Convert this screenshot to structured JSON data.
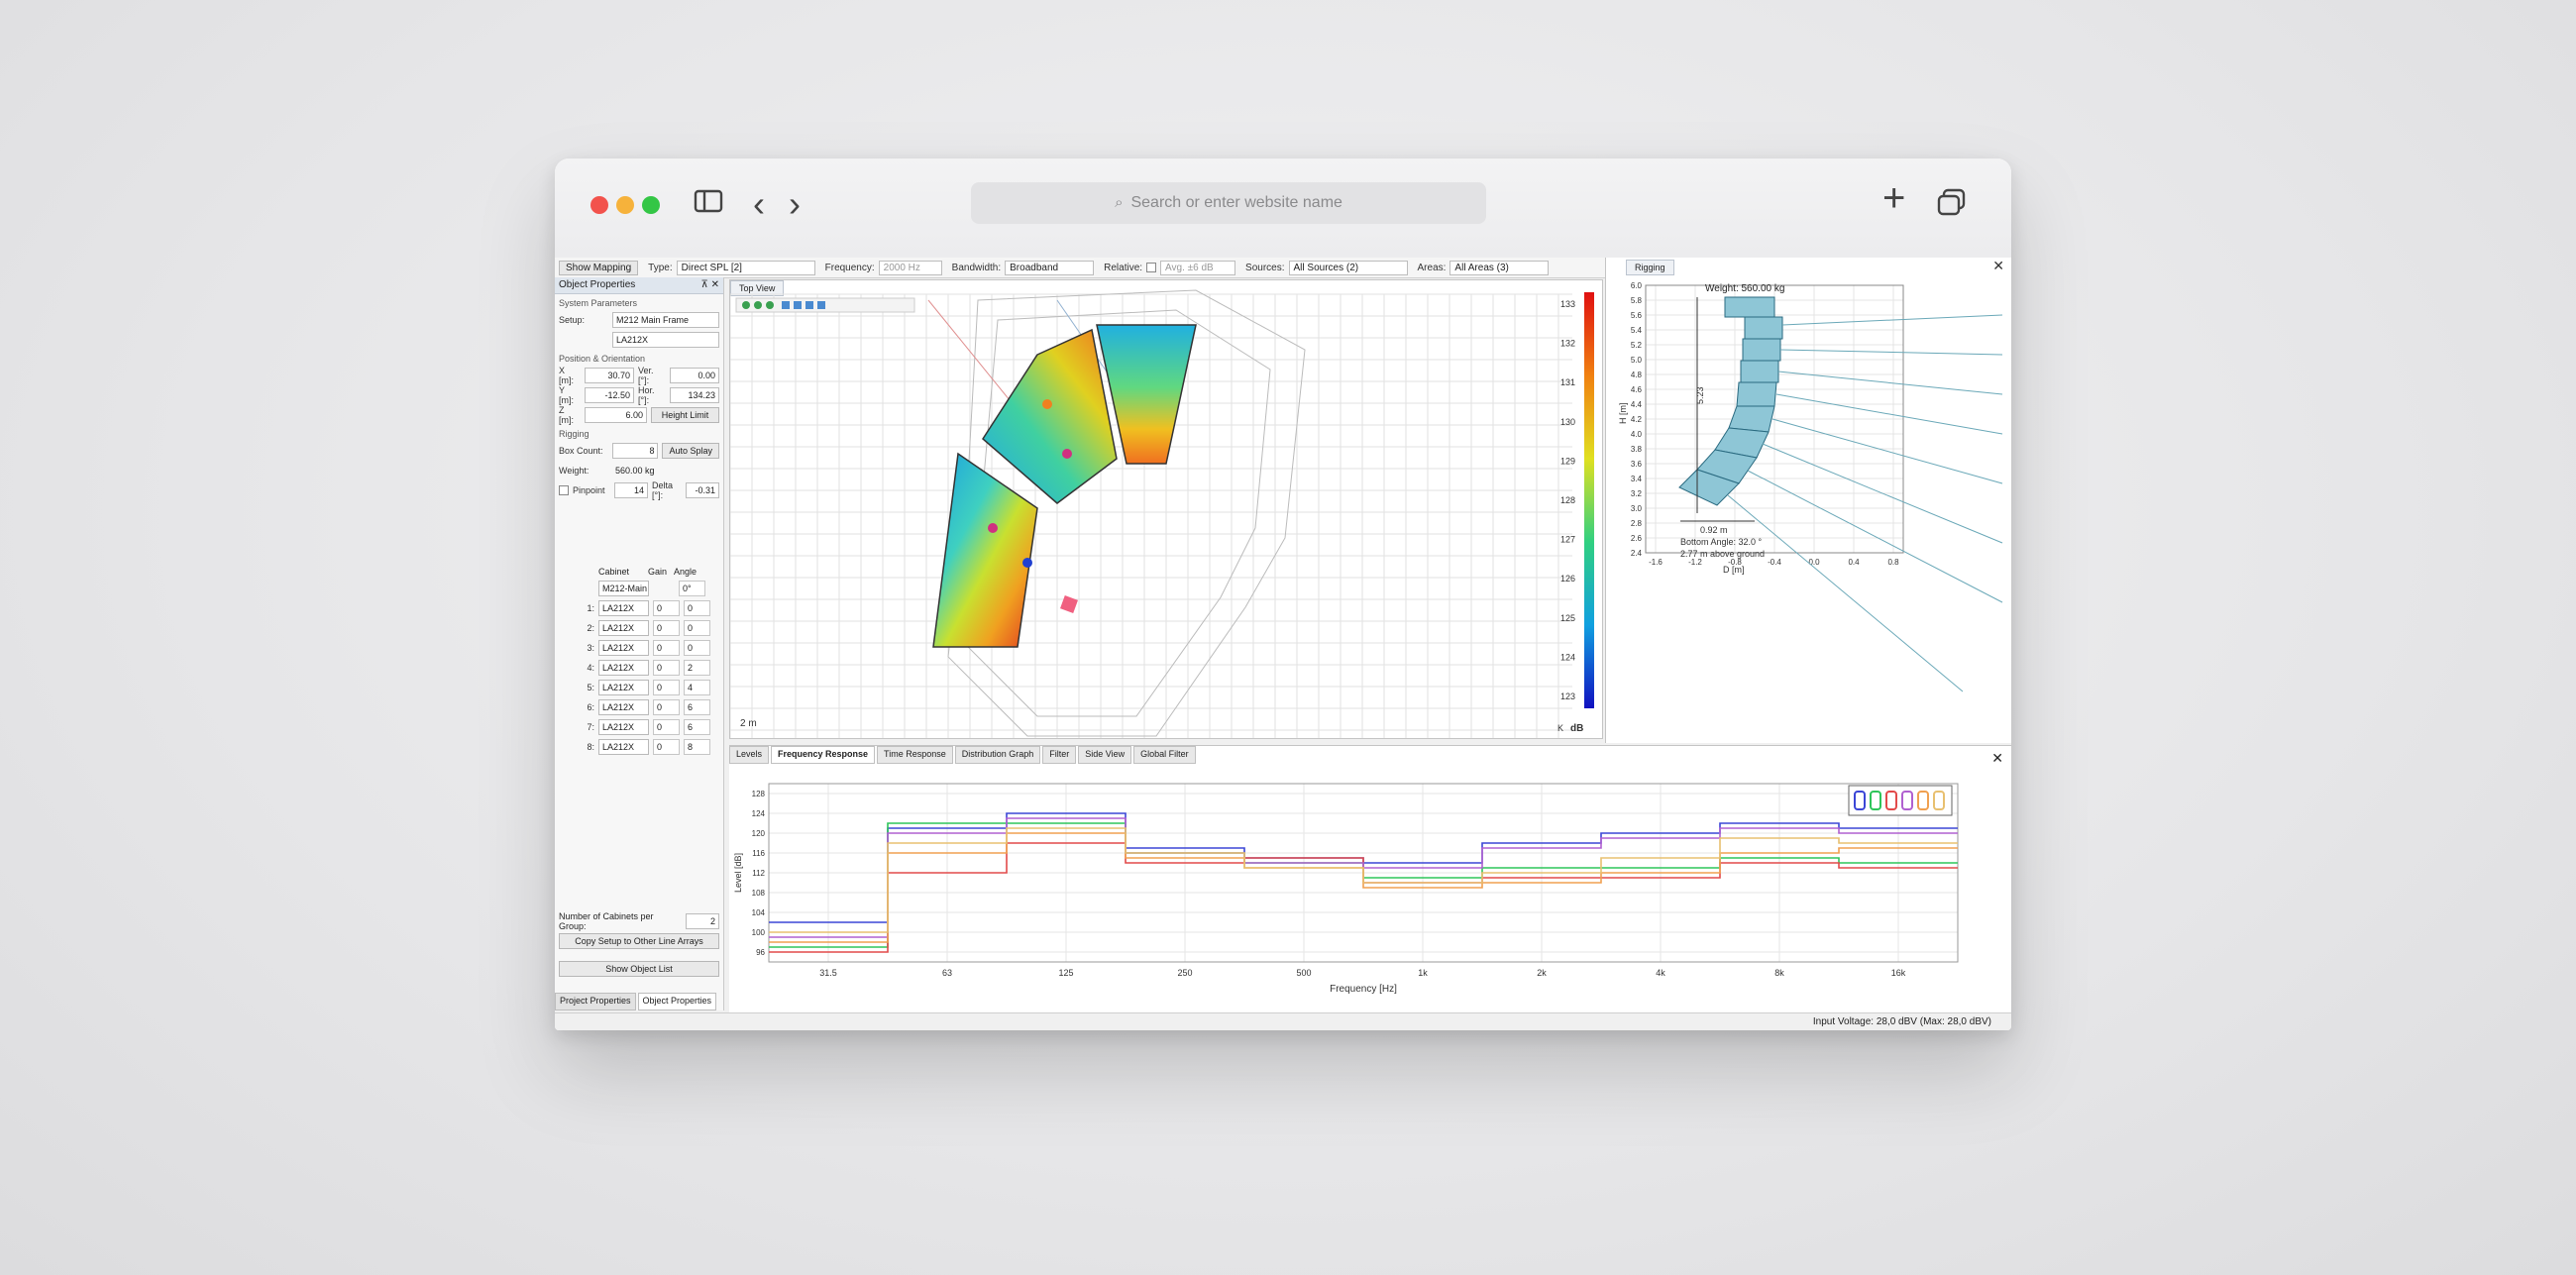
{
  "browser": {
    "url_placeholder": "Search or enter website name",
    "plus_label": "+",
    "back_label": "‹",
    "forward_label": "›"
  },
  "toolbar": {
    "show_mapping": "Show Mapping",
    "type_label": "Type:",
    "type_value": "Direct SPL [2]",
    "frequency_label": "Frequency:",
    "frequency_value": "2000 Hz",
    "bandwidth_label": "Bandwidth:",
    "bandwidth_value": "Broadband",
    "relative_label": "Relative:",
    "relative_value": "Avg. ±6 dB",
    "sources_label": "Sources:",
    "sources_value": "All Sources (2)",
    "areas_label": "Areas:",
    "areas_value": "All Areas (3)"
  },
  "left_panel": {
    "title": "Object Properties",
    "pins": "⊼ ✕",
    "system_params": "System Parameters",
    "setup_label": "Setup:",
    "setup_value": "M212 Main Frame",
    "model_value": "LA212X",
    "pos_section": "Position & Orientation",
    "x_label": "X [m]:",
    "x_value": "30.70",
    "ver_label": "Ver. [°]:",
    "ver_value": "0.00",
    "y_label": "Y [m]:",
    "y_value": "-12.50",
    "hor_label": "Hor. [°]:",
    "hor_value": "134.23",
    "z_label": "Z [m]:",
    "z_value": "6.00",
    "height_limit": "Height Limit",
    "rigging_section": "Rigging",
    "box_count_label": "Box Count:",
    "box_count_value": "8",
    "auto_splay": "Auto Splay",
    "weight_label": "Weight:",
    "weight_value": "560.00 kg",
    "pinpoint_label": "Pinpoint",
    "pinpoint_value": "14",
    "delta_label": "Delta [°]:",
    "delta_value": "-0.31",
    "col_cabinet": "Cabinet",
    "col_gain": "Gain",
    "col_angle": "Angle",
    "frame_name": "M212-Main",
    "frame_angle": "0°",
    "cabinets": [
      {
        "idx": "1:",
        "name": "LA212X",
        "gain": "0",
        "angle": "0"
      },
      {
        "idx": "2:",
        "name": "LA212X",
        "gain": "0",
        "angle": "0"
      },
      {
        "idx": "3:",
        "name": "LA212X",
        "gain": "0",
        "angle": "0"
      },
      {
        "idx": "4:",
        "name": "LA212X",
        "gain": "0",
        "angle": "2"
      },
      {
        "idx": "5:",
        "name": "LA212X",
        "gain": "0",
        "angle": "4"
      },
      {
        "idx": "6:",
        "name": "LA212X",
        "gain": "0",
        "angle": "6"
      },
      {
        "idx": "7:",
        "name": "LA212X",
        "gain": "0",
        "angle": "6"
      },
      {
        "idx": "8:",
        "name": "LA212X",
        "gain": "0",
        "angle": "8"
      }
    ],
    "num_cabinets_label": "Number of Cabinets per Group:",
    "num_cabinets_value": "2",
    "copy_setup": "Copy Setup to Other Line Arrays",
    "show_object_list": "Show Object List",
    "tab_project": "Project Properties",
    "tab_object": "Object Properties"
  },
  "top_view": {
    "tab": "Top View",
    "scale_label": "2 m",
    "corner_label": "K",
    "colorbar_ticks": [
      "133",
      "132",
      "131",
      "130",
      "129",
      "128",
      "127",
      "126",
      "125",
      "124",
      "123"
    ],
    "colorbar_unit": "dB"
  },
  "rigging": {
    "tab": "Rigging",
    "weight_text": "Weight: 560.00 kg",
    "height_dim": "5.23",
    "depth_dim": "0.92 m",
    "bottom_angle": "Bottom Angle: 32.0 °",
    "above_ground": "2.77 m above ground",
    "y_axis_label": "H [m]",
    "x_axis_label": "D [m]",
    "y_ticks": [
      "6.0",
      "5.8",
      "5.6",
      "5.4",
      "5.2",
      "5.0",
      "4.8",
      "4.6",
      "4.4",
      "4.2",
      "4.0",
      "3.8",
      "3.6",
      "3.4",
      "3.2",
      "3.0",
      "2.8",
      "2.6",
      "2.4"
    ],
    "x_ticks": [
      "-1.6",
      "-1.2",
      "-0.8",
      "-0.4",
      "0.0",
      "0.4",
      "0.8"
    ]
  },
  "freq_panel": {
    "tabs": [
      "Levels",
      "Frequency Response",
      "Time Response",
      "Distribution Graph",
      "Filter",
      "Side View",
      "Global Filter"
    ],
    "active_tab": "Frequency Response"
  },
  "chart_data": {
    "type": "line",
    "xlabel": "Frequency [Hz]",
    "ylabel": "Level [dB]",
    "x_ticks": [
      "31.5",
      "63",
      "125",
      "250",
      "500",
      "1k",
      "2k",
      "4k",
      "8k",
      "16k"
    ],
    "y_ticks": [
      "128",
      "124",
      "120",
      "116",
      "112",
      "108",
      "104",
      "100",
      "96"
    ],
    "ylim": [
      94,
      130
    ],
    "grid": true,
    "legend_placement": "top-right",
    "bands": [
      "31.5",
      "63",
      "125",
      "250",
      "500",
      "1k",
      "2k",
      "4k",
      "8k",
      "16k"
    ],
    "series": [
      {
        "color": "#3b46d6",
        "values": [
          102,
          121,
          124,
          117,
          115,
          114,
          118,
          120,
          122,
          121
        ]
      },
      {
        "color": "#2ec55a",
        "values": [
          97,
          122,
          122,
          116,
          114,
          111,
          113,
          113,
          115,
          114
        ]
      },
      {
        "color": "#e24a4a",
        "values": [
          96,
          112,
          118,
          114,
          115,
          110,
          111,
          111,
          114,
          113
        ]
      },
      {
        "color": "#b060d0",
        "values": [
          99,
          120,
          123,
          116,
          114,
          113,
          117,
          119,
          121,
          120
        ]
      },
      {
        "color": "#f0a050",
        "values": [
          98,
          116,
          120,
          115,
          113,
          109,
          110,
          112,
          116,
          117
        ]
      },
      {
        "color": "#e8c070",
        "values": [
          100,
          118,
          121,
          116,
          113,
          110,
          112,
          115,
          119,
          118
        ]
      }
    ]
  },
  "status": {
    "input_voltage": "Input Voltage: 28,0 dBV (Max: 28,0 dBV)"
  },
  "colors": {
    "accent": "#1f6fd1",
    "heat_high": "#e02020",
    "heat_low": "#1030d0"
  }
}
